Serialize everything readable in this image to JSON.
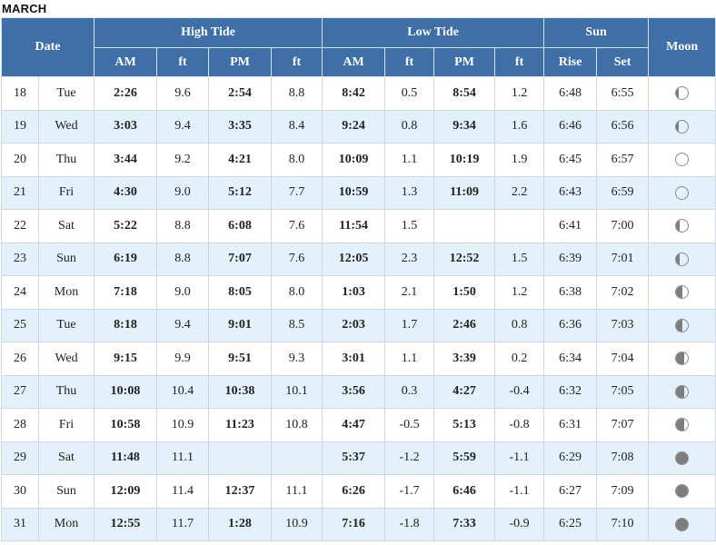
{
  "month": "MARCH",
  "headers": {
    "date": "Date",
    "high_tide": "High Tide",
    "low_tide": "Low Tide",
    "sun": "Sun",
    "moon": "Moon",
    "am": "AM",
    "pm": "PM",
    "ft": "ft",
    "rise": "Rise",
    "set": "Set"
  },
  "rows": [
    {
      "day": "18",
      "dow": "Tue",
      "h_am": "2:26",
      "h_am_ft": "9.6",
      "h_pm": "2:54",
      "h_pm_ft": "8.8",
      "l_am": "8:42",
      "l_am_ft": "0.5",
      "l_pm": "8:54",
      "l_pm_ft": "1.2",
      "rise": "6:48",
      "set": "6:55",
      "moon_phase": "waxing-gibbous"
    },
    {
      "day": "19",
      "dow": "Wed",
      "h_am": "3:03",
      "h_am_ft": "9.4",
      "h_pm": "3:35",
      "h_pm_ft": "8.4",
      "l_am": "9:24",
      "l_am_ft": "0.8",
      "l_pm": "9:34",
      "l_pm_ft": "1.6",
      "rise": "6:46",
      "set": "6:56",
      "moon_phase": "waxing-gibbous"
    },
    {
      "day": "20",
      "dow": "Thu",
      "h_am": "3:44",
      "h_am_ft": "9.2",
      "h_pm": "4:21",
      "h_pm_ft": "8.0",
      "l_am": "10:09",
      "l_am_ft": "1.1",
      "l_pm": "10:19",
      "l_pm_ft": "1.9",
      "rise": "6:45",
      "set": "6:57",
      "moon_phase": "full"
    },
    {
      "day": "21",
      "dow": "Fri",
      "h_am": "4:30",
      "h_am_ft": "9.0",
      "h_pm": "5:12",
      "h_pm_ft": "7.7",
      "l_am": "10:59",
      "l_am_ft": "1.3",
      "l_pm": "11:09",
      "l_pm_ft": "2.2",
      "rise": "6:43",
      "set": "6:59",
      "moon_phase": "full"
    },
    {
      "day": "22",
      "dow": "Sat",
      "h_am": "5:22",
      "h_am_ft": "8.8",
      "h_pm": "6:08",
      "h_pm_ft": "7.6",
      "l_am": "11:54",
      "l_am_ft": "1.5",
      "l_pm": "",
      "l_pm_ft": "",
      "rise": "6:41",
      "set": "7:00",
      "moon_phase": "waning-gibbous"
    },
    {
      "day": "23",
      "dow": "Sun",
      "h_am": "6:19",
      "h_am_ft": "8.8",
      "h_pm": "7:07",
      "h_pm_ft": "7.6",
      "l_am": "12:05",
      "l_am_ft": "2.3",
      "l_pm": "12:52",
      "l_pm_ft": "1.5",
      "rise": "6:39",
      "set": "7:01",
      "moon_phase": "waning-gibbous"
    },
    {
      "day": "24",
      "dow": "Mon",
      "h_am": "7:18",
      "h_am_ft": "9.0",
      "h_pm": "8:05",
      "h_pm_ft": "8.0",
      "l_am": "1:03",
      "l_am_ft": "2.1",
      "l_pm": "1:50",
      "l_pm_ft": "1.2",
      "rise": "6:38",
      "set": "7:02",
      "moon_phase": "last-quarter"
    },
    {
      "day": "25",
      "dow": "Tue",
      "h_am": "8:18",
      "h_am_ft": "9.4",
      "h_pm": "9:01",
      "h_pm_ft": "8.5",
      "l_am": "2:03",
      "l_am_ft": "1.7",
      "l_pm": "2:46",
      "l_pm_ft": "0.8",
      "rise": "6:36",
      "set": "7:03",
      "moon_phase": "last-quarter"
    },
    {
      "day": "26",
      "dow": "Wed",
      "h_am": "9:15",
      "h_am_ft": "9.9",
      "h_pm": "9:51",
      "h_pm_ft": "9.3",
      "l_am": "3:01",
      "l_am_ft": "1.1",
      "l_pm": "3:39",
      "l_pm_ft": "0.2",
      "rise": "6:34",
      "set": "7:04",
      "moon_phase": "waning-crescent"
    },
    {
      "day": "27",
      "dow": "Thu",
      "h_am": "10:08",
      "h_am_ft": "10.4",
      "h_pm": "10:38",
      "h_pm_ft": "10.1",
      "l_am": "3:56",
      "l_am_ft": "0.3",
      "l_pm": "4:27",
      "l_pm_ft": "-0.4",
      "rise": "6:32",
      "set": "7:05",
      "moon_phase": "waning-crescent"
    },
    {
      "day": "28",
      "dow": "Fri",
      "h_am": "10:58",
      "h_am_ft": "10.9",
      "h_pm": "11:23",
      "h_pm_ft": "10.8",
      "l_am": "4:47",
      "l_am_ft": "-0.5",
      "l_pm": "5:13",
      "l_pm_ft": "-0.8",
      "rise": "6:31",
      "set": "7:07",
      "moon_phase": "waning-crescent"
    },
    {
      "day": "29",
      "dow": "Sat",
      "h_am": "11:48",
      "h_am_ft": "11.1",
      "h_pm": "",
      "h_pm_ft": "",
      "l_am": "5:37",
      "l_am_ft": "-1.2",
      "l_pm": "5:59",
      "l_pm_ft": "-1.1",
      "rise": "6:29",
      "set": "7:08",
      "moon_phase": "new"
    },
    {
      "day": "30",
      "dow": "Sun",
      "h_am": "12:09",
      "h_am_ft": "11.4",
      "h_pm": "12:37",
      "h_pm_ft": "11.1",
      "l_am": "6:26",
      "l_am_ft": "-1.7",
      "l_pm": "6:46",
      "l_pm_ft": "-1.1",
      "rise": "6:27",
      "set": "7:09",
      "moon_phase": "new"
    },
    {
      "day": "31",
      "dow": "Mon",
      "h_am": "12:55",
      "h_am_ft": "11.7",
      "h_pm": "1:28",
      "h_pm_ft": "10.9",
      "l_am": "7:16",
      "l_am_ft": "-1.8",
      "l_pm": "7:33",
      "l_pm_ft": "-0.9",
      "rise": "6:25",
      "set": "7:10",
      "moon_phase": "new"
    }
  ],
  "colors": {
    "header_bg": "#3e6fa6",
    "alt_row_bg": "#e3f1fb"
  }
}
